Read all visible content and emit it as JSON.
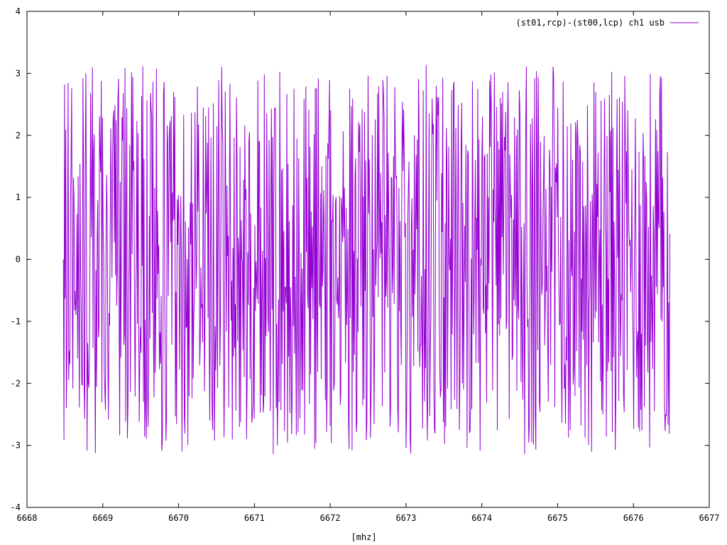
{
  "chart_data": {
    "type": "line",
    "title": "",
    "xlabel": "[mhz]",
    "ylabel": "",
    "xlim": [
      6668,
      6677
    ],
    "ylim": [
      -4,
      4
    ],
    "xticks": [
      6668,
      6669,
      6670,
      6671,
      6672,
      6673,
      6674,
      6675,
      6676,
      6677
    ],
    "yticks": [
      -4,
      -3,
      -2,
      -1,
      0,
      1,
      2,
      3,
      4
    ],
    "grid": false,
    "legend_position": "top-right",
    "series": [
      {
        "name": "(st01,rcp)-(st00,lcp) ch1 usb",
        "color": "#9400d3",
        "x_start": 6668.48,
        "x_end": 6676.48,
        "num_points": 1024,
        "y_range": [
          -3.14,
          3.14
        ],
        "description_values": "phase values wrapping between -pi and pi; approximately uniformly distributed noise"
      }
    ]
  }
}
